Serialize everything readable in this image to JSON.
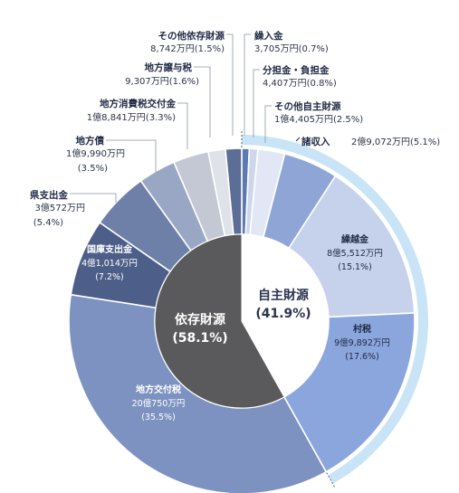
{
  "chart_data": {
    "type": "pie",
    "title": "",
    "groups": [
      {
        "name": "自主財源",
        "percent_label": "(41.9%)"
      },
      {
        "name": "依存財源",
        "percent_label": "(58.1%)"
      }
    ],
    "slices": [
      {
        "name": "繰入金",
        "amount": "3,705万円",
        "percent": 0.7,
        "percent_label": "(0.7%)",
        "group": "自主財源",
        "color": "#5a79b5"
      },
      {
        "name": "分担金・負担金",
        "amount": "4,407万円",
        "percent": 0.8,
        "percent_label": "(0.8%)",
        "group": "自主財源",
        "color": "#cdd6ec"
      },
      {
        "name": "その他自主財源",
        "amount": "1億4,405万円",
        "percent": 2.5,
        "percent_label": "(2.5%)",
        "group": "自主財源",
        "color": "#e1e7f4"
      },
      {
        "name": "諸収入",
        "amount": "2億9,072万円",
        "percent": 5.1,
        "percent_label": "(5.1%)",
        "group": "自主財源",
        "color": "#8ea5d6"
      },
      {
        "name": "繰越金",
        "amount": "8億5,512万円",
        "percent": 15.1,
        "percent_label": "(15.1%)",
        "group": "自主財源",
        "color": "#c6d1eb"
      },
      {
        "name": "村税",
        "amount": "9億9,892万円",
        "percent": 17.6,
        "percent_label": "(17.6%)",
        "group": "自主財源",
        "color": "#8ba6dc"
      },
      {
        "name": "地方交付税",
        "amount": "20億750万円",
        "percent": 35.5,
        "percent_label": "(35.5%)",
        "group": "依存財源",
        "color": "#7d92c0"
      },
      {
        "name": "国庫支出金",
        "amount": "4億1,014万円",
        "percent": 7.2,
        "percent_label": "(7.2%)",
        "group": "依存財源",
        "color": "#4d5f88"
      },
      {
        "name": "県支出金",
        "amount": "3億572万円",
        "percent": 5.4,
        "percent_label": "(5.4%)",
        "group": "依存財源",
        "color": "#6e80a8"
      },
      {
        "name": "地方債",
        "amount": "1億9,990万円",
        "percent": 3.5,
        "percent_label": "(3.5%)",
        "group": "依存財源",
        "color": "#9aa7c4"
      },
      {
        "name": "地方消費税交付金",
        "amount": "1億8,841万円",
        "percent": 3.3,
        "percent_label": "(3.3%)",
        "group": "依存財源",
        "color": "#c3c8d4"
      },
      {
        "name": "地方譲与税",
        "amount": "9,307万円",
        "percent": 1.6,
        "percent_label": "(1.6%)",
        "group": "依存財源",
        "color": "#dfe2e9"
      },
      {
        "name": "その他依存財源",
        "amount": "8,742万円",
        "percent": 1.5,
        "percent_label": "(1.5%)",
        "group": "依存財源",
        "color": "#5c6e96"
      }
    ],
    "inner_colors": {
      "自主財源": "#ffffff",
      "依存財源": "#5a5a5c"
    },
    "outer_band_color": "#c9e4f6"
  }
}
